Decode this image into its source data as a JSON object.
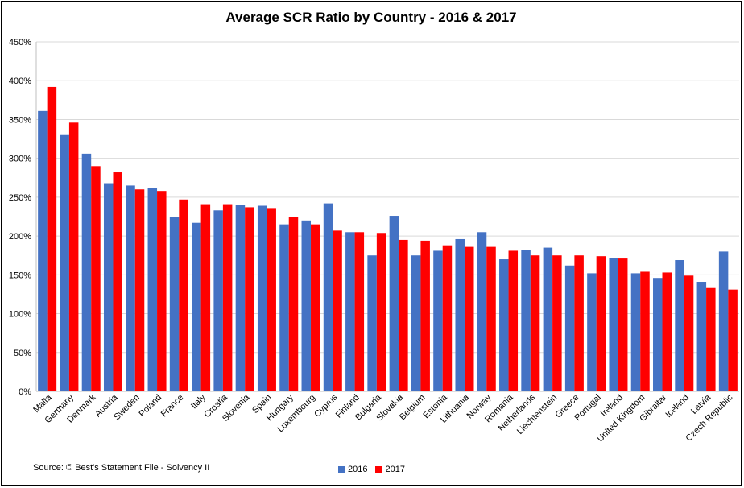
{
  "chart_data": {
    "type": "bar",
    "title": "Average SCR Ratio by Country - 2016 & 2017",
    "xlabel": "",
    "ylabel": "",
    "ylim": [
      0,
      450
    ],
    "yticks": [
      "0%",
      "50%",
      "100%",
      "150%",
      "200%",
      "250%",
      "300%",
      "350%",
      "400%",
      "450%"
    ],
    "grid": true,
    "legend_position": "bottom",
    "categories": [
      "Malta",
      "Germany",
      "Denmark",
      "Austria",
      "Sweden",
      "Poland",
      "France",
      "Italy",
      "Croatia",
      "Slovenia",
      "Spain",
      "Hungary",
      "Luxembourg",
      "Cyprus",
      "Finland",
      "Bulgaria",
      "Slovakia",
      "Belgium",
      "Estonia",
      "Lithuania",
      "Norway",
      "Romania",
      "Netherlands",
      "Liechtenstein",
      "Greece",
      "Portugal",
      "Ireland",
      "United Kingdom",
      "Gibraltar",
      "Iceland",
      "Latvia",
      "Czech Republic"
    ],
    "series": [
      {
        "name": "2016",
        "color": "#4472C4",
        "values": [
          361,
          330,
          306,
          268,
          265,
          262,
          225,
          217,
          233,
          240,
          239,
          215,
          220,
          242,
          205,
          175,
          226,
          175,
          181,
          196,
          205,
          170,
          182,
          185,
          162,
          152,
          172,
          152,
          146,
          169,
          141,
          180
        ]
      },
      {
        "name": "2017",
        "color": "#FF0000",
        "values": [
          392,
          346,
          290,
          282,
          260,
          258,
          247,
          241,
          241,
          237,
          236,
          224,
          215,
          207,
          205,
          204,
          195,
          194,
          188,
          186,
          186,
          181,
          175,
          175,
          175,
          174,
          171,
          154,
          153,
          149,
          133,
          131
        ]
      }
    ]
  },
  "source_text": "Source: © Best's Statement File - Solvency II"
}
